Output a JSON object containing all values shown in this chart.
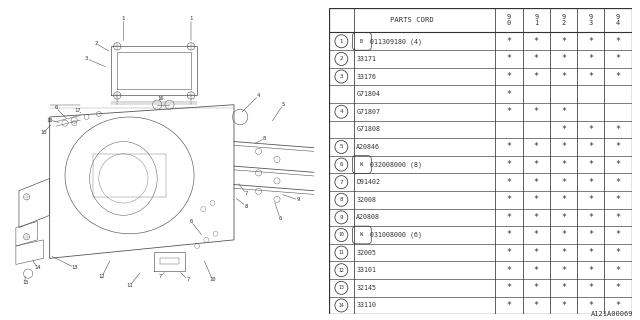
{
  "bg_color": "#ffffff",
  "line_color": "#555555",
  "text_color": "#333333",
  "watermark": "A121A00069",
  "table": {
    "header": [
      "PARTS CORD",
      "9\n0",
      "9\n1",
      "9\n2",
      "9\n3",
      "9\n4"
    ],
    "rows": [
      {
        "num": "1",
        "prefix": "B",
        "part": "011309180 (4)",
        "stars": [
          1,
          1,
          1,
          1,
          1
        ]
      },
      {
        "num": "2",
        "prefix": "",
        "part": "33171",
        "stars": [
          1,
          1,
          1,
          1,
          1
        ]
      },
      {
        "num": "3",
        "prefix": "",
        "part": "33176",
        "stars": [
          1,
          1,
          1,
          1,
          1
        ]
      },
      {
        "num": "",
        "prefix": "",
        "part": "G71804",
        "stars": [
          1,
          0,
          0,
          0,
          0
        ]
      },
      {
        "num": "4",
        "prefix": "",
        "part": "G71807",
        "stars": [
          1,
          1,
          1,
          0,
          0
        ]
      },
      {
        "num": "",
        "prefix": "",
        "part": "G71808",
        "stars": [
          0,
          0,
          1,
          1,
          1
        ]
      },
      {
        "num": "5",
        "prefix": "",
        "part": "A20846",
        "stars": [
          1,
          1,
          1,
          1,
          1
        ]
      },
      {
        "num": "6",
        "prefix": "W",
        "part": "032008000 (8)",
        "stars": [
          1,
          1,
          1,
          1,
          1
        ]
      },
      {
        "num": "7",
        "prefix": "",
        "part": "D91402",
        "stars": [
          1,
          1,
          1,
          1,
          1
        ]
      },
      {
        "num": "8",
        "prefix": "",
        "part": "32008",
        "stars": [
          1,
          1,
          1,
          1,
          1
        ]
      },
      {
        "num": "9",
        "prefix": "",
        "part": "A20808",
        "stars": [
          1,
          1,
          1,
          1,
          1
        ]
      },
      {
        "num": "10",
        "prefix": "W",
        "part": "031008000 (6)",
        "stars": [
          1,
          1,
          1,
          1,
          1
        ]
      },
      {
        "num": "11",
        "prefix": "",
        "part": "32005",
        "stars": [
          1,
          1,
          1,
          1,
          1
        ]
      },
      {
        "num": "12",
        "prefix": "",
        "part": "33101",
        "stars": [
          1,
          1,
          1,
          1,
          1
        ]
      },
      {
        "num": "13",
        "prefix": "",
        "part": "32145",
        "stars": [
          1,
          1,
          1,
          1,
          1
        ]
      },
      {
        "num": "14",
        "prefix": "",
        "part": "33110",
        "stars": [
          1,
          1,
          1,
          1,
          1
        ]
      }
    ]
  }
}
